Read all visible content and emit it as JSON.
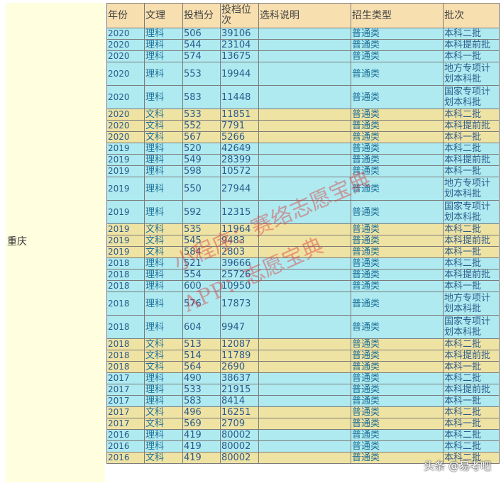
{
  "region": "重庆",
  "headers": [
    "年份",
    "文理",
    "投档分",
    "投档位次",
    "选科说明",
    "招生类型",
    "批次"
  ],
  "rows": [
    {
      "year": "2020",
      "kind": "理科",
      "score": "506",
      "rank": "39106",
      "note": "",
      "type": "普通类",
      "batch": "本科二批",
      "tall": false
    },
    {
      "year": "2020",
      "kind": "理科",
      "score": "544",
      "rank": "23104",
      "note": "",
      "type": "普通类",
      "batch": "本科提前批",
      "tall": false
    },
    {
      "year": "2020",
      "kind": "理科",
      "score": "574",
      "rank": "13675",
      "note": "",
      "type": "普通类",
      "batch": "本科一批",
      "tall": false
    },
    {
      "year": "2020",
      "kind": "理科",
      "score": "553",
      "rank": "19944",
      "note": "",
      "type": "普通类",
      "batch": "地方专项计划本科批",
      "tall": true
    },
    {
      "year": "2020",
      "kind": "理科",
      "score": "583",
      "rank": "11448",
      "note": "",
      "type": "普通类",
      "batch": "国家专项计划本科批",
      "tall": true
    },
    {
      "year": "2020",
      "kind": "文科",
      "score": "533",
      "rank": "11851",
      "note": "",
      "type": "普通类",
      "batch": "本科二批",
      "tall": false
    },
    {
      "year": "2020",
      "kind": "文科",
      "score": "552",
      "rank": "7791",
      "note": "",
      "type": "普通类",
      "batch": "本科提前批",
      "tall": false
    },
    {
      "year": "2020",
      "kind": "文科",
      "score": "567",
      "rank": "5266",
      "note": "",
      "type": "普通类",
      "batch": "本科一批",
      "tall": false
    },
    {
      "year": "2019",
      "kind": "理科",
      "score": "520",
      "rank": "42649",
      "note": "",
      "type": "普通类",
      "batch": "本科二批",
      "tall": false
    },
    {
      "year": "2019",
      "kind": "理科",
      "score": "549",
      "rank": "28399",
      "note": "",
      "type": "普通类",
      "batch": "本科提前批",
      "tall": false
    },
    {
      "year": "2019",
      "kind": "理科",
      "score": "598",
      "rank": "10572",
      "note": "",
      "type": "普通类",
      "batch": "本科一批",
      "tall": false
    },
    {
      "year": "2019",
      "kind": "理科",
      "score": "550",
      "rank": "27944",
      "note": "",
      "type": "普通类",
      "batch": "地方专项计划本科批",
      "tall": true
    },
    {
      "year": "2019",
      "kind": "理科",
      "score": "592",
      "rank": "12315",
      "note": "",
      "type": "普通类",
      "batch": "国家专项计划本科批",
      "tall": true
    },
    {
      "year": "2019",
      "kind": "文科",
      "score": "535",
      "rank": "11964",
      "note": "",
      "type": "普通类",
      "batch": "本科二批",
      "tall": false
    },
    {
      "year": "2019",
      "kind": "文科",
      "score": "545",
      "rank": "9483",
      "note": "",
      "type": "普通类",
      "batch": "本科提前批",
      "tall": false
    },
    {
      "year": "2019",
      "kind": "文科",
      "score": "584",
      "rank": "2803",
      "note": "",
      "type": "普通类",
      "batch": "本科一批",
      "tall": false
    },
    {
      "year": "2018",
      "kind": "理科",
      "score": "521",
      "rank": "39666",
      "note": "",
      "type": "普通类",
      "batch": "本科二批",
      "tall": false
    },
    {
      "year": "2018",
      "kind": "理科",
      "score": "554",
      "rank": "25726",
      "note": "",
      "type": "普通类",
      "batch": "本科提前批",
      "tall": false
    },
    {
      "year": "2018",
      "kind": "理科",
      "score": "600",
      "rank": "10950",
      "note": "",
      "type": "普通类",
      "batch": "本科一批",
      "tall": false
    },
    {
      "year": "2018",
      "kind": "理科",
      "score": "576",
      "rank": "17873",
      "note": "",
      "type": "普通类",
      "batch": "地方专项计划本科批",
      "tall": true
    },
    {
      "year": "2018",
      "kind": "理科",
      "score": "604",
      "rank": "9947",
      "note": "",
      "type": "普通类",
      "batch": "国家专项计划本科批",
      "tall": true
    },
    {
      "year": "2018",
      "kind": "文科",
      "score": "513",
      "rank": "12087",
      "note": "",
      "type": "普通类",
      "batch": "本科二批",
      "tall": false
    },
    {
      "year": "2018",
      "kind": "文科",
      "score": "514",
      "rank": "11789",
      "note": "",
      "type": "普通类",
      "batch": "本科提前批",
      "tall": false
    },
    {
      "year": "2018",
      "kind": "文科",
      "score": "564",
      "rank": "2690",
      "note": "",
      "type": "普通类",
      "batch": "本科一批",
      "tall": false
    },
    {
      "year": "2017",
      "kind": "理科",
      "score": "490",
      "rank": "38637",
      "note": "",
      "type": "普通类",
      "batch": "本科二批",
      "tall": false
    },
    {
      "year": "2017",
      "kind": "理科",
      "score": "533",
      "rank": "21915",
      "note": "",
      "type": "普通类",
      "batch": "本科提前批",
      "tall": false
    },
    {
      "year": "2017",
      "kind": "理科",
      "score": "583",
      "rank": "8414",
      "note": "",
      "type": "普通类",
      "batch": "本科一批",
      "tall": false
    },
    {
      "year": "2017",
      "kind": "文科",
      "score": "496",
      "rank": "16251",
      "note": "",
      "type": "普通类",
      "batch": "本科二批",
      "tall": false
    },
    {
      "year": "2017",
      "kind": "文科",
      "score": "569",
      "rank": "2709",
      "note": "",
      "type": "普通类",
      "batch": "本科一批",
      "tall": false
    },
    {
      "year": "2016",
      "kind": "理科",
      "score": "419",
      "rank": "80002",
      "note": "",
      "type": "普通类",
      "batch": "本科二批",
      "tall": false
    },
    {
      "year": "2016",
      "kind": "理科",
      "score": "419",
      "rank": "80002",
      "note": "",
      "type": "普通类",
      "batch": "本科二批",
      "tall": false
    },
    {
      "year": "2016",
      "kind": "文科",
      "score": "419",
      "rank": "80002",
      "note": "",
      "type": "普通类",
      "batch": "本科二批",
      "tall": false
    }
  ],
  "watermark": {
    "line1": "小程序：赛络志愿宝典",
    "line2": "APP：志愿宝典"
  },
  "credit": "头条 @易考吧",
  "colors": {
    "header_bg": "#f7dfaf",
    "row_blue": "#aeeaf0",
    "row_tan": "#efe3a3",
    "region_bg": "#ffffe0",
    "text": "#2c5a8c"
  }
}
